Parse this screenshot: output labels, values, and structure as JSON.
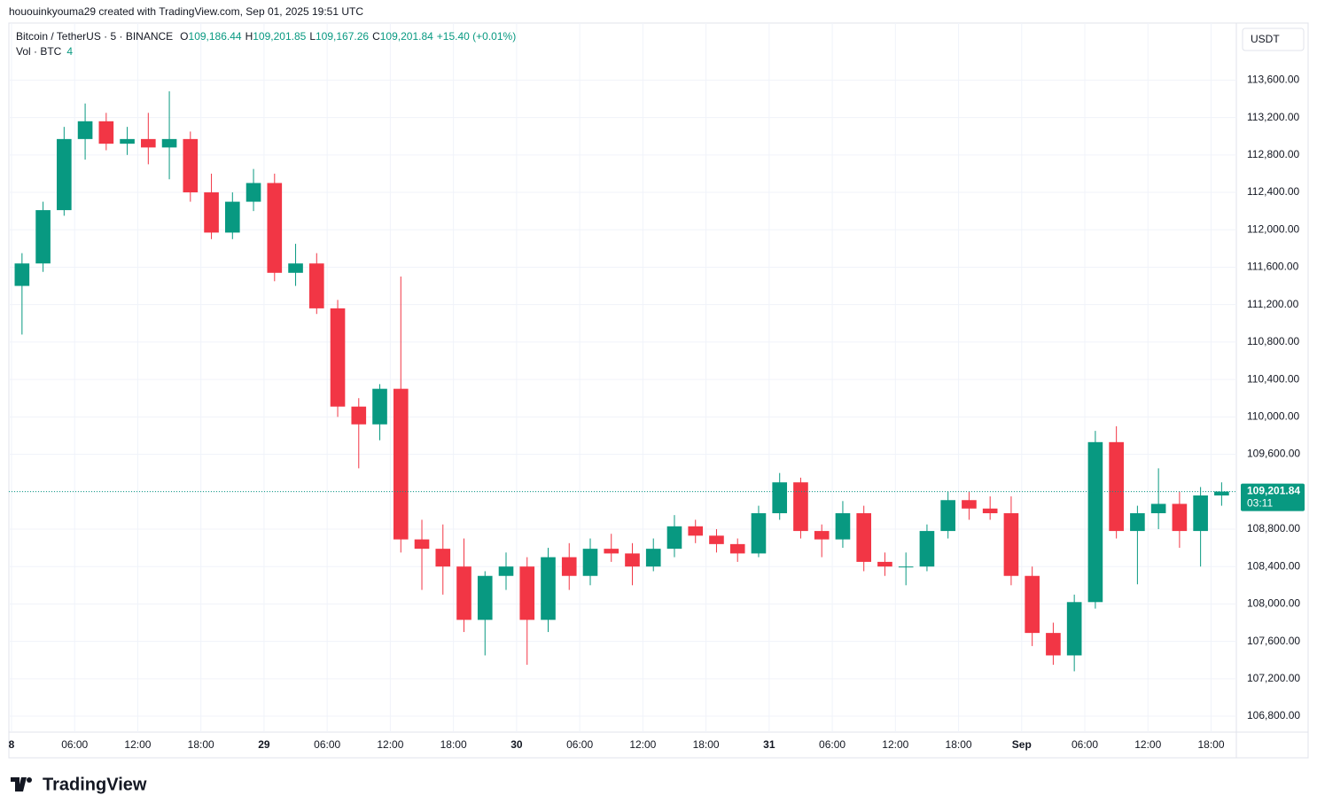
{
  "header": {
    "attribution": "hououinkyouma29 created with TradingView.com, Sep 01, 2025 19:51 UTC"
  },
  "legend": {
    "symbol": "Bitcoin / TetherUS · 5 · BINANCE",
    "o_label": "O",
    "o": "109,186.44",
    "h_label": "H",
    "h": "109,201.85",
    "l_label": "L",
    "l": "109,167.26",
    "c_label": "C",
    "c": "109,201.84",
    "change": "+15.40 (+0.01%)",
    "volume_label": "Vol · BTC",
    "volume": "4"
  },
  "logo": "TradingView",
  "chart_data": {
    "type": "candlestick",
    "x": [
      1,
      3,
      5,
      7,
      9,
      11,
      13,
      15,
      17,
      19,
      21,
      23,
      25,
      27,
      29,
      31,
      33,
      35,
      37,
      39,
      41,
      43,
      45,
      47,
      49,
      51,
      53,
      55,
      57,
      59,
      61,
      63,
      65,
      67,
      69,
      71,
      73,
      75,
      77,
      79,
      81,
      83,
      85,
      87,
      89,
      91,
      93,
      95,
      97,
      99,
      101,
      103,
      105,
      107,
      109,
      111,
      113,
      115
    ],
    "open": [
      111400,
      111640,
      112210,
      112970,
      113160,
      112920,
      112970,
      112880,
      112970,
      112400,
      111970,
      112300,
      112500,
      111540,
      111640,
      111160,
      110110,
      109920,
      110300,
      108690,
      108590,
      108400,
      107830,
      108300,
      108400,
      107830,
      108500,
      108300,
      108590,
      108540,
      108400,
      108590,
      108830,
      108730,
      108640,
      108540,
      108970,
      109300,
      108780,
      108690,
      108970,
      108450,
      108400,
      108400,
      108780,
      109110,
      109020,
      108970,
      108300,
      107690,
      107450,
      108020,
      109730,
      108780,
      108970,
      109070,
      108780,
      109160
    ],
    "high": [
      111750,
      112300,
      113100,
      113350,
      113250,
      113100,
      113250,
      113480,
      113050,
      112600,
      112400,
      112650,
      112600,
      111850,
      111750,
      111250,
      110200,
      110350,
      111500,
      108900,
      108850,
      108700,
      108350,
      108550,
      108500,
      108600,
      108650,
      108700,
      108750,
      108650,
      108700,
      108950,
      108900,
      108800,
      108700,
      109050,
      109400,
      109350,
      108850,
      109100,
      109050,
      108550,
      108550,
      108850,
      109200,
      109200,
      109150,
      109150,
      108400,
      107800,
      108100,
      109850,
      109900,
      109050,
      109450,
      109200,
      109250,
      109300
    ],
    "low": [
      110880,
      111550,
      112150,
      112750,
      112850,
      112800,
      112700,
      112540,
      112300,
      111900,
      111900,
      112200,
      111450,
      111400,
      111100,
      110000,
      109450,
      109750,
      108550,
      108150,
      108100,
      107700,
      107450,
      108150,
      107350,
      107700,
      108150,
      108200,
      108450,
      108200,
      108350,
      108500,
      108650,
      108550,
      108450,
      108500,
      108900,
      108700,
      108500,
      108600,
      108350,
      108300,
      108200,
      108350,
      108700,
      108900,
      108900,
      108200,
      107550,
      107350,
      107280,
      107950,
      108700,
      108210,
      108800,
      108600,
      108400,
      109050
    ],
    "close": [
      111640,
      112210,
      112970,
      113160,
      112920,
      112970,
      112880,
      112970,
      112400,
      111970,
      112300,
      112500,
      111540,
      111640,
      111160,
      110110,
      109920,
      110300,
      108690,
      108590,
      108400,
      107830,
      108300,
      108400,
      107830,
      108500,
      108300,
      108590,
      108540,
      108400,
      108590,
      108830,
      108730,
      108640,
      108540,
      108970,
      109300,
      108780,
      108690,
      108970,
      108450,
      108400,
      108400,
      108780,
      109110,
      109020,
      108970,
      108300,
      107690,
      107450,
      108020,
      109730,
      108780,
      108970,
      109070,
      108780,
      109160,
      109201.84
    ],
    "up_color": "#089981",
    "down_color": "#f23645",
    "xlim": [
      -0.25,
      116.4
    ],
    "ylim": [
      106630,
      114210
    ],
    "xticks": [
      {
        "value": 0,
        "label": "8"
      },
      {
        "value": 6,
        "label": "06:00"
      },
      {
        "value": 12,
        "label": "12:00"
      },
      {
        "value": 18,
        "label": "18:00"
      },
      {
        "value": 24,
        "label": "29"
      },
      {
        "value": 30,
        "label": "06:00"
      },
      {
        "value": 36,
        "label": "12:00"
      },
      {
        "value": 42,
        "label": "18:00"
      },
      {
        "value": 48,
        "label": "30"
      },
      {
        "value": 54,
        "label": "06:00"
      },
      {
        "value": 60,
        "label": "12:00"
      },
      {
        "value": 66,
        "label": "18:00"
      },
      {
        "value": 72,
        "label": "31"
      },
      {
        "value": 78,
        "label": "06:00"
      },
      {
        "value": 84,
        "label": "12:00"
      },
      {
        "value": 90,
        "label": "18:00"
      },
      {
        "value": 96,
        "label": "Sep"
      },
      {
        "value": 102,
        "label": "06:00"
      },
      {
        "value": 108,
        "label": "12:00"
      },
      {
        "value": 114,
        "label": "18:00"
      }
    ],
    "yticks": [
      {
        "value": 106800,
        "label": "106,800.00"
      },
      {
        "value": 107200,
        "label": "107,200.00"
      },
      {
        "value": 107600,
        "label": "107,600.00"
      },
      {
        "value": 108000,
        "label": "108,000.00"
      },
      {
        "value": 108400,
        "label": "108,400.00"
      },
      {
        "value": 108800,
        "label": "108,800.00"
      },
      {
        "value": 109200,
        "label": "109,200.00"
      },
      {
        "value": 109600,
        "label": "109,600.00"
      },
      {
        "value": 110000,
        "label": "110,000.00"
      },
      {
        "value": 110400,
        "label": "110,400.00"
      },
      {
        "value": 110800,
        "label": "110,800.00"
      },
      {
        "value": 111200,
        "label": "111,200.00"
      },
      {
        "value": 111600,
        "label": "111,600.00"
      },
      {
        "value": 112000,
        "label": "112,000.00"
      },
      {
        "value": 112400,
        "label": "112,400.00"
      },
      {
        "value": 112800,
        "label": "112,800.00"
      },
      {
        "value": 113200,
        "label": "113,200.00"
      },
      {
        "value": 113600,
        "label": "113,600.00"
      }
    ],
    "grid": true,
    "last_price": 109201.84,
    "last_price_label": "109,201.84",
    "countdown": "03:11",
    "currency": "USDT"
  }
}
